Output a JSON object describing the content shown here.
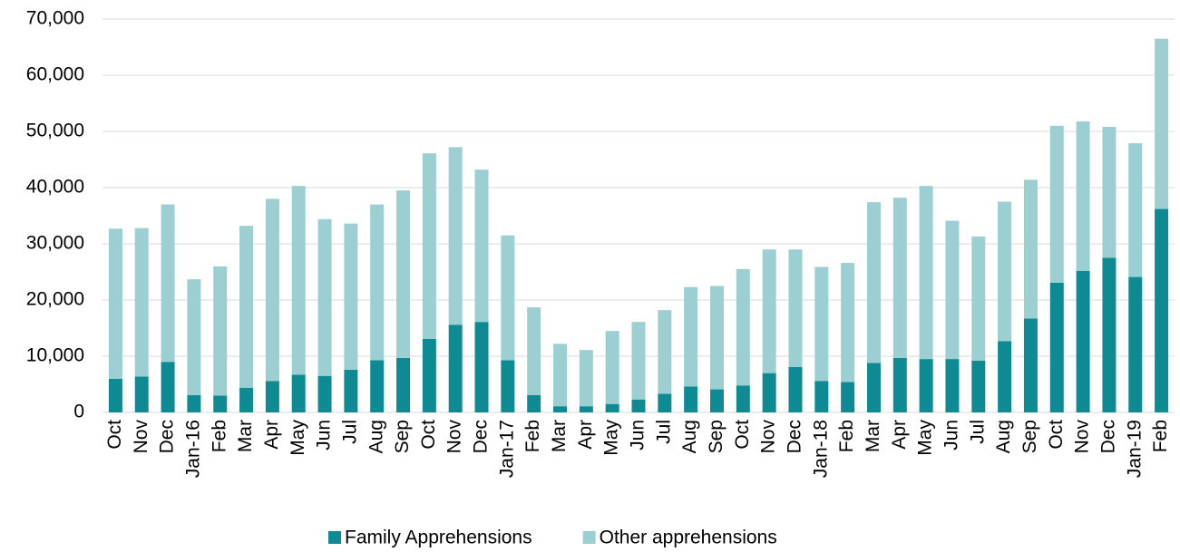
{
  "chart_data": {
    "type": "stacked_bar",
    "categories": [
      "Oct",
      "Nov",
      "Dec",
      "Jan-16",
      "Feb",
      "Mar",
      "Apr",
      "May",
      "Jun",
      "Jul",
      "Aug",
      "Sep",
      "Oct",
      "Nov",
      "Dec",
      "Jan-17",
      "Feb",
      "Mar",
      "Apr",
      "May",
      "Jun",
      "Jul",
      "Aug",
      "Sep",
      "Oct",
      "Nov",
      "Dec",
      "Jan-18",
      "Feb",
      "Mar",
      "Apr",
      "May",
      "Jun",
      "Jul",
      "Aug",
      "Sep",
      "Oct",
      "Nov",
      "Dec",
      "Jan-19",
      "Feb"
    ],
    "series": [
      {
        "name": "Family Apprehensions",
        "color": "#0e8a93",
        "values": [
          6000,
          6400,
          9000,
          3100,
          3000,
          4400,
          5600,
          6700,
          6500,
          7600,
          9300,
          9700,
          13100,
          15600,
          16100,
          9300,
          3100,
          1100,
          1100,
          1500,
          2300,
          3300,
          4600,
          4100,
          4800,
          7000,
          8100,
          5600,
          5400,
          8800,
          9700,
          9500,
          9500,
          9200,
          12700,
          16700,
          23100,
          25200,
          27500,
          24100,
          36200
        ]
      },
      {
        "name": "Other apprehensions",
        "color": "#9ccfd2",
        "values": [
          26700,
          26400,
          28000,
          20600,
          23000,
          28800,
          32400,
          33600,
          27900,
          26000,
          27700,
          29800,
          33000,
          31600,
          27100,
          22200,
          15600,
          11100,
          10000,
          13000,
          13800,
          14900,
          17700,
          18400,
          20700,
          22000,
          20900,
          20300,
          21200,
          28600,
          28500,
          30800,
          24600,
          22100,
          24800,
          24700,
          27900,
          26600,
          23300,
          23800,
          30300
        ]
      }
    ],
    "ylim": [
      0,
      70000
    ],
    "yticks": [
      0,
      {
        "value": 10000,
        "label": "10,000"
      },
      {
        "value": 20000,
        "label": "20,000"
      },
      {
        "value": 30000,
        "label": "30,000"
      },
      {
        "value": 40000,
        "label": "40,000"
      },
      {
        "value": 50000,
        "label": "50,000"
      },
      {
        "value": 60000,
        "label": "60,000"
      },
      {
        "value": 70000,
        "label": "70,000"
      }
    ],
    "grid": true,
    "legend": "bottom"
  }
}
